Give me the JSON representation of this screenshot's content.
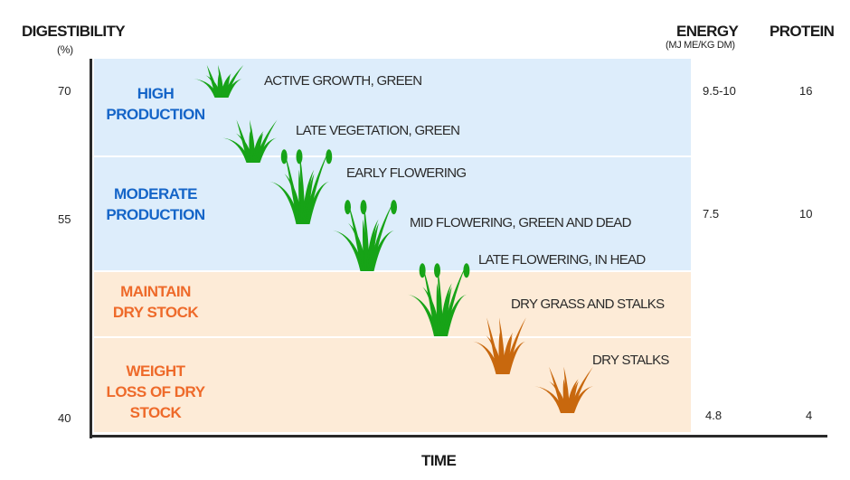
{
  "y_axis": {
    "title": "DIGESTIBILITY",
    "unit": "(%)",
    "ticks": [
      "70",
      "55",
      "40"
    ]
  },
  "x_axis": {
    "title": "TIME"
  },
  "columns": {
    "energy": {
      "title": "ENERGY",
      "unit": "(MJ ME/KG DM)",
      "values": [
        "9.5-10",
        "7.5",
        "4.8"
      ]
    },
    "protein": {
      "title": "PROTEIN",
      "values": [
        "16",
        "10",
        "4"
      ]
    }
  },
  "zones": [
    {
      "line1": "HIGH",
      "line2": "PRODUCTION",
      "line3": "",
      "color": "#1565c8",
      "band": "#ddedfb"
    },
    {
      "line1": "MODERATE",
      "line2": "PRODUCTION",
      "line3": "",
      "color": "#1565c8",
      "band": "#ddedfb"
    },
    {
      "line1": "MAINTAIN",
      "line2": "DRY STOCK",
      "line3": "",
      "color": "#ee6a2a",
      "band": "#fdebd7"
    },
    {
      "line1": "WEIGHT",
      "line2": "LOSS OF DRY",
      "line3": "STOCK",
      "color": "#ee6a2a",
      "band": "#fdebd7"
    }
  ],
  "stages": [
    {
      "label": "ACTIVE GROWTH, GREEN",
      "icon": "green-grass-icon",
      "color": "#17a317"
    },
    {
      "label": "LATE VEGETATION, GREEN",
      "icon": "green-grass-icon",
      "color": "#17a317"
    },
    {
      "label": "EARLY FLOWERING",
      "icon": "flowering-grass-icon",
      "color": "#17a317"
    },
    {
      "label": "MID FLOWERING, GREEN AND DEAD",
      "icon": "flowering-grass-icon",
      "color": "#17a317"
    },
    {
      "label": "LATE FLOWERING, IN HEAD",
      "icon": "flowering-grass-icon",
      "color": "#17a317"
    },
    {
      "label": "DRY GRASS AND STALKS",
      "icon": "dry-grass-icon",
      "color": "#c8680e"
    },
    {
      "label": "DRY STALKS",
      "icon": "dry-grass-icon",
      "color": "#c8680e"
    }
  ]
}
